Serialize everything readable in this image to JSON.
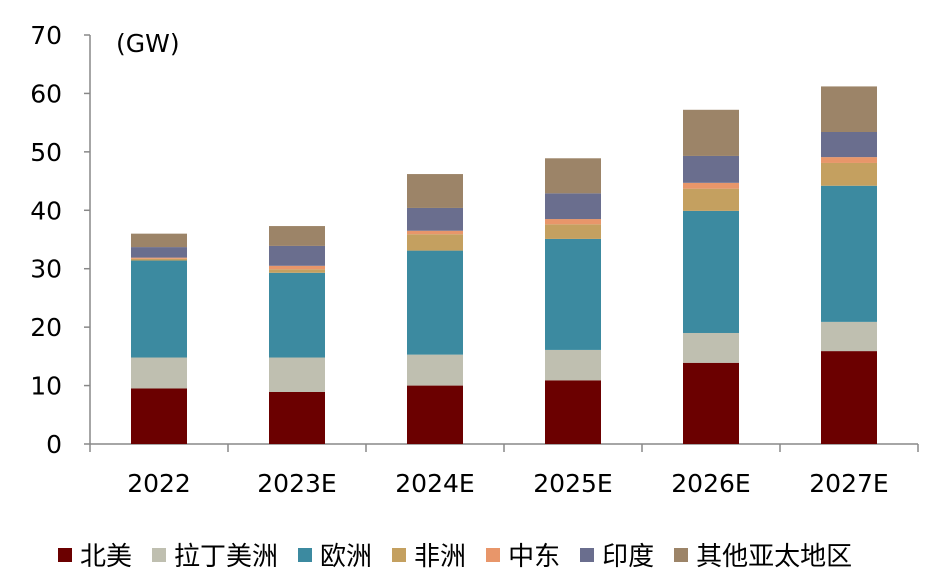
{
  "chart_data": {
    "type": "bar",
    "stacked": true,
    "unit_label": "(GW)",
    "categories": [
      "2022",
      "2023E",
      "2024E",
      "2025E",
      "2026E",
      "2027E"
    ],
    "ylim": [
      0,
      70
    ],
    "yticks": [
      0,
      10,
      20,
      30,
      40,
      50,
      60,
      70
    ],
    "grid": false,
    "legend_position": "bottom",
    "series": [
      {
        "name": "北美",
        "color": "#6b0000",
        "values": [
          9.5,
          8.9,
          10.0,
          10.9,
          13.9,
          15.9
        ]
      },
      {
        "name": "拉丁美洲",
        "color": "#bfbfb0",
        "values": [
          5.3,
          5.9,
          5.3,
          5.2,
          5.1,
          5.0
        ]
      },
      {
        "name": "欧洲",
        "color": "#3c8aa0",
        "values": [
          16.6,
          14.5,
          17.8,
          19.0,
          20.9,
          23.3
        ]
      },
      {
        "name": "非洲",
        "color": "#c4a060",
        "values": [
          0.3,
          0.6,
          2.8,
          2.5,
          3.8,
          3.9
        ]
      },
      {
        "name": "中东",
        "color": "#e8966a",
        "values": [
          0.2,
          0.6,
          0.6,
          0.9,
          1.0,
          1.0
        ]
      },
      {
        "name": "印度",
        "color": "#6a6e8e",
        "values": [
          1.8,
          3.4,
          3.9,
          4.4,
          4.6,
          4.3
        ]
      },
      {
        "name": "其他亚太地区",
        "color": "#9c8468",
        "values": [
          2.3,
          3.4,
          5.8,
          6.0,
          7.9,
          7.8
        ]
      }
    ]
  }
}
